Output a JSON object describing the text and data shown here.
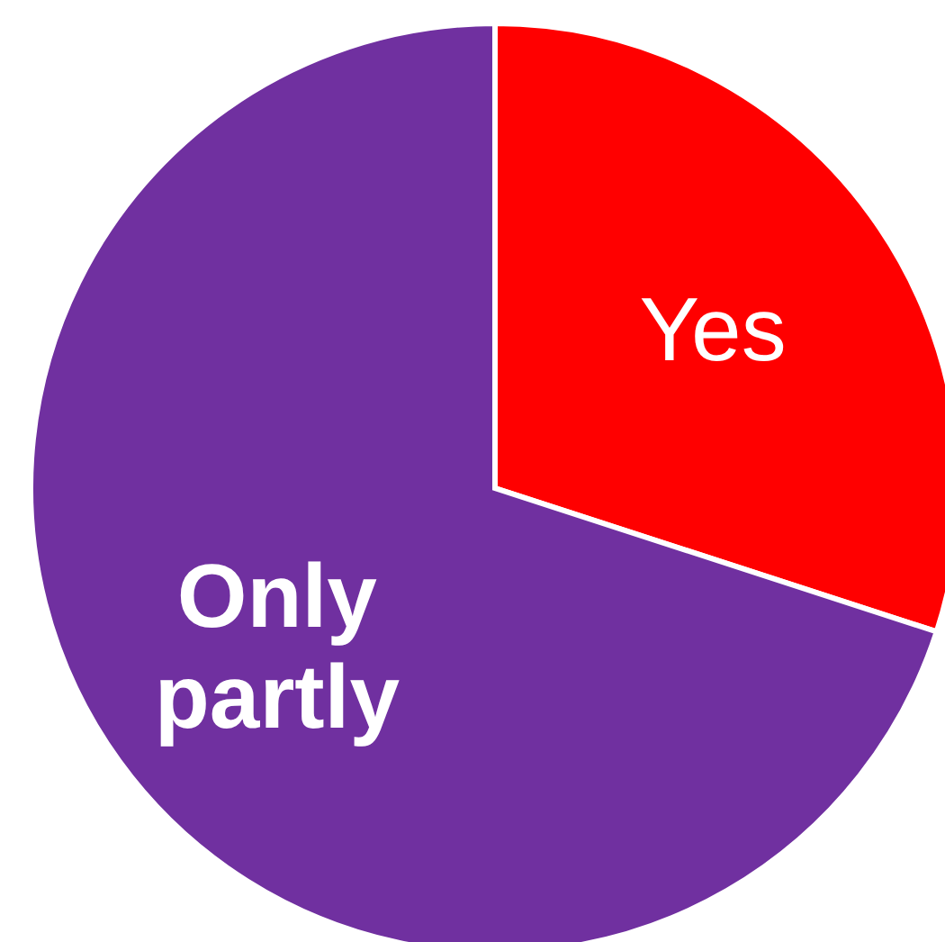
{
  "chart_data": {
    "type": "pie",
    "categories": [
      "Yes",
      "Only partly"
    ],
    "values": [
      30,
      70
    ],
    "colors": [
      "#ff0000",
      "#7030a0"
    ]
  }
}
